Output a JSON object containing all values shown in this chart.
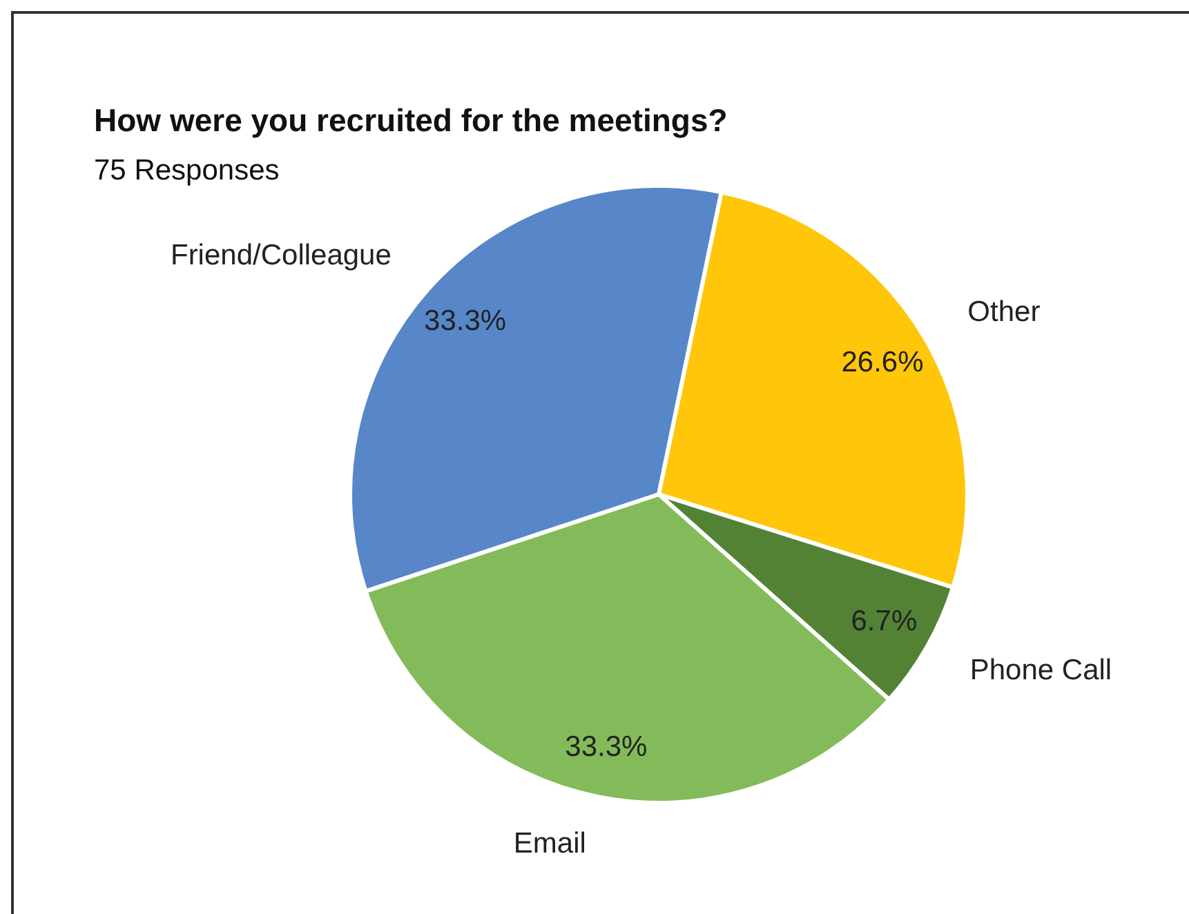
{
  "chart_data": {
    "type": "pie",
    "title": "How were you recruited for the meetings?",
    "subtitle": "75 Responses",
    "categories": [
      "Other",
      "Phone Call",
      "Email",
      "Friend/Colleague"
    ],
    "values": [
      26.6,
      6.7,
      33.3,
      33.3
    ],
    "value_labels": [
      "26.6%",
      "6.7%",
      "33.3%",
      "33.3%"
    ],
    "colors": [
      "#ffc60a",
      "#548235",
      "#84bb5a",
      "#5787c8"
    ],
    "legend": false
  }
}
